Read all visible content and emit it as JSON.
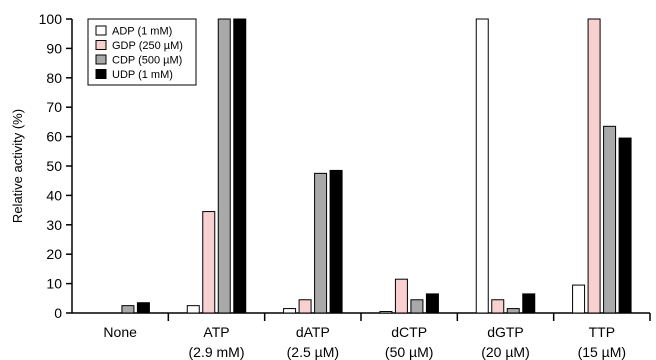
{
  "chart_data": {
    "type": "bar",
    "ylabel": "Relative activity (%)",
    "ylim": [
      0,
      100
    ],
    "yticks": [
      0,
      10,
      20,
      30,
      40,
      50,
      60,
      70,
      80,
      90,
      100
    ],
    "categories": [
      {
        "name": "None",
        "sub": ""
      },
      {
        "name": "ATP",
        "sub": "(2.9 mM)"
      },
      {
        "name": "dATP",
        "sub": "(2.5 µM)"
      },
      {
        "name": "dCTP",
        "sub": "(50 µM)"
      },
      {
        "name": "dGTP",
        "sub": "(20 µM)"
      },
      {
        "name": "TTP",
        "sub": "(15 µM)"
      }
    ],
    "series": [
      {
        "name": "ADP (1 mM)",
        "color": "#ffffff",
        "values": [
          0,
          2.5,
          1.5,
          0.5,
          100,
          9.5
        ]
      },
      {
        "name": "GDP (250 µM)",
        "color": "#f9d0d0",
        "values": [
          0,
          34.5,
          4.5,
          11.5,
          4.5,
          100
        ]
      },
      {
        "name": "CDP (500 µM)",
        "color": "#a9a9a9",
        "values": [
          2.5,
          100,
          47.5,
          4.5,
          1.5,
          63.5
        ]
      },
      {
        "name": "UDP (1 mM)",
        "color": "#000000",
        "values": [
          3.5,
          100,
          48.5,
          6.5,
          6.5,
          59.5
        ]
      }
    ],
    "legend_position": "top-left",
    "grid": false
  }
}
